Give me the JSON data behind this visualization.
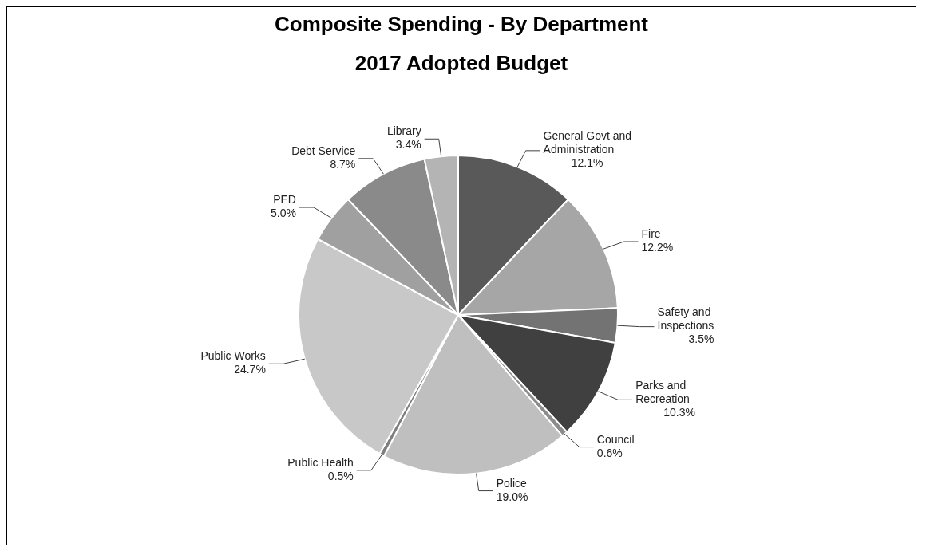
{
  "chart_data": {
    "type": "pie",
    "title": "Composite Spending - By Department",
    "subtitle": "2017 Adopted Budget",
    "categories": [
      "General Govt and Administration",
      "Fire",
      "Safety and Inspections",
      "Parks and Recreation",
      "Council",
      "Police",
      "Public Health",
      "Public Works",
      "PED",
      "Debt Service",
      "Library"
    ],
    "values": [
      12.1,
      12.2,
      3.5,
      10.3,
      0.6,
      19.0,
      0.5,
      24.7,
      5.0,
      8.7,
      3.4
    ],
    "value_labels": [
      "12.1%",
      "12.2%",
      "3.5%",
      "10.3%",
      "0.6%",
      "19.0%",
      "0.5%",
      "24.7%",
      "5.0%",
      "8.7%",
      "3.4%"
    ],
    "colors": [
      "#595959",
      "#a6a6a6",
      "#737373",
      "#404040",
      "#8c8c8c",
      "#bfbfbf",
      "#7f7f7f",
      "#c8c8c8",
      "#a0a0a0",
      "#8a8a8a",
      "#b4b4b4"
    ],
    "legend": false
  }
}
